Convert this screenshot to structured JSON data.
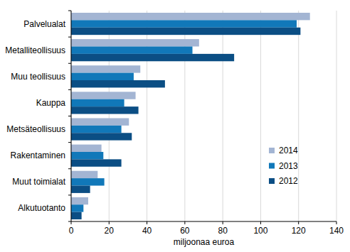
{
  "chart_data": {
    "type": "bar",
    "orientation": "horizontal",
    "xlabel": "miljoonaa euroa",
    "categories": [
      "Palvelualat",
      "Metalliteollisuus",
      "Muu teollisuus",
      "Kauppa",
      "Metsäteollisuus",
      "Rakentaminen",
      "Muut toimialat",
      "Alkutuotanto"
    ],
    "series": [
      {
        "name": "2014",
        "color": "#a3b5d3",
        "values": [
          126,
          67.5,
          36.5,
          34,
          30.5,
          16,
          14,
          9
        ]
      },
      {
        "name": "2013",
        "color": "#1178b9",
        "values": [
          119,
          64,
          33,
          28,
          26.5,
          17,
          17.5,
          6.5
        ]
      },
      {
        "name": "2012",
        "color": "#0b4e84",
        "values": [
          121,
          86,
          49.5,
          35.5,
          32,
          26.5,
          10,
          5.5
        ]
      }
    ],
    "xlim": [
      0,
      140
    ],
    "xticks": [
      0,
      20,
      40,
      60,
      80,
      100,
      120,
      140
    ],
    "grid": true,
    "legend": "lower right"
  }
}
